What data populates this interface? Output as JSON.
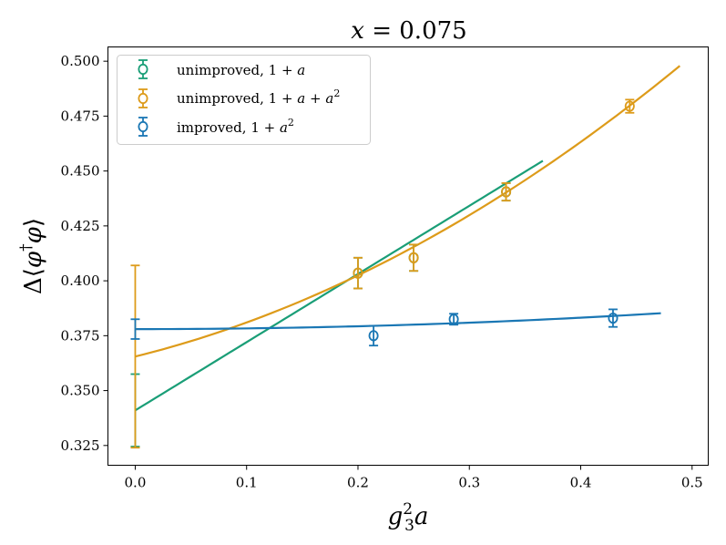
{
  "chart_data": {
    "type": "scatter",
    "title": "x = 0.075",
    "xlabel": "g_3^2 a",
    "ylabel": "Δ⟨φ†φ⟩",
    "xlim": [
      -0.0245,
      0.5145
    ],
    "ylim": [
      0.316,
      0.5065
    ],
    "xticks": [
      0.0,
      0.1,
      0.2,
      0.3,
      0.4,
      0.5
    ],
    "xtick_labels": [
      "0.0",
      "0.1",
      "0.2",
      "0.3",
      "0.4",
      "0.5"
    ],
    "yticks": [
      0.325,
      0.35,
      0.375,
      0.4,
      0.425,
      0.45,
      0.475,
      0.5
    ],
    "ytick_labels": [
      "0.325",
      "0.350",
      "0.375",
      "0.400",
      "0.425",
      "0.450",
      "0.475",
      "0.500"
    ],
    "grid": false,
    "legend_position": "top-left",
    "series": [
      {
        "name": "unimproved, 1 + a",
        "color": "#1a9e77",
        "points": [
          {
            "x": 0.2,
            "y": 0.4035,
            "err": 0.007
          },
          {
            "x": 0.25,
            "y": 0.4105,
            "err": 0.006
          },
          {
            "x": 0.333,
            "y": 0.4405,
            "err": 0.004
          }
        ],
        "extrapolation": {
          "x": 0.0,
          "y": 0.341,
          "err": 0.0165
        },
        "fit": {
          "form": "linear",
          "x_range": [
            0.0,
            0.366
          ],
          "c0": 0.341,
          "c1": 0.3105,
          "c2": 0.0
        }
      },
      {
        "name": "unimproved, 1 + a + a²",
        "color": "#dd9b1a",
        "points": [
          {
            "x": 0.2,
            "y": 0.4035,
            "err": 0.007
          },
          {
            "x": 0.25,
            "y": 0.4105,
            "err": 0.006
          },
          {
            "x": 0.333,
            "y": 0.4405,
            "err": 0.004
          },
          {
            "x": 0.444,
            "y": 0.4795,
            "err": 0.003
          }
        ],
        "extrapolation": {
          "x": 0.0,
          "y": 0.3655,
          "err": 0.0415
        },
        "fit": {
          "form": "quadratic",
          "x_range": [
            0.0,
            0.489
          ],
          "c0": 0.3655,
          "c1": 0.1255,
          "c2": 0.297
        }
      },
      {
        "name": "improved, 1 + a²",
        "color": "#1a77b4",
        "points": [
          {
            "x": 0.214,
            "y": 0.375,
            "err": 0.0045
          },
          {
            "x": 0.286,
            "y": 0.3825,
            "err": 0.0025
          },
          {
            "x": 0.429,
            "y": 0.383,
            "err": 0.004
          }
        ],
        "extrapolation": {
          "x": 0.0,
          "y": 0.378,
          "err": 0.0045
        },
        "fit": {
          "form": "quadratic",
          "x_range": [
            0.0,
            0.472
          ],
          "c0": 0.378,
          "c1": 0.0,
          "c2": 0.0325
        }
      }
    ]
  }
}
